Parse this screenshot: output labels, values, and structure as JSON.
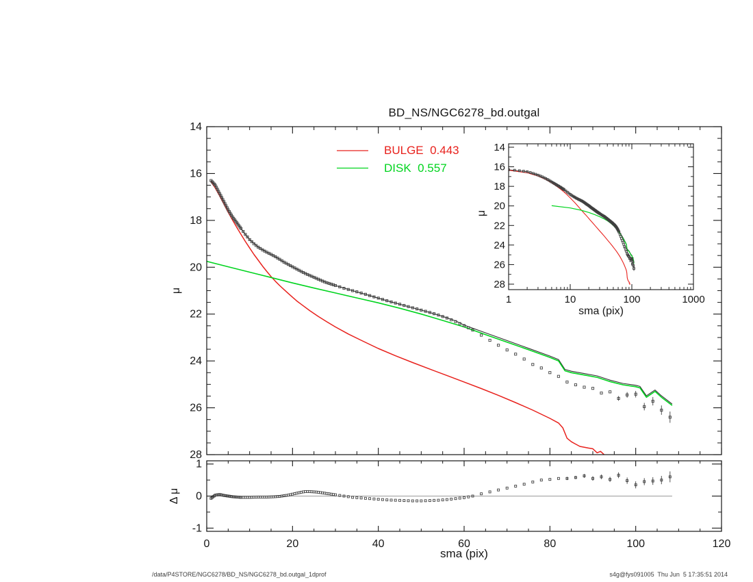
{
  "figure": {
    "title": "BD_NS/NGC6278_bd.outgal",
    "footer_left": "/data/P4STORE/NGC6278/BD_NS/NGC6278_bd.outgal_1dprof",
    "footer_right": "s4g@fys091005  Thu Jun  5 17:35:51 2014",
    "legend": {
      "entries": [
        {
          "label": "BULGE  0.443",
          "color": "#e8211c"
        },
        {
          "label": "DISK  0.557",
          "color": "#00d41e"
        }
      ]
    }
  },
  "chart_data": {
    "type": "line",
    "title": "BD_NS/NGC6278_bd.outgal",
    "main_panel": {
      "ylabel": "μ",
      "xlim": [
        0,
        120
      ],
      "ylim": [
        28,
        14
      ],
      "xticks": [
        0,
        20,
        40,
        60,
        80,
        100,
        120
      ],
      "xminor_step": 5,
      "yticks": [
        14,
        16,
        18,
        20,
        22,
        24,
        26,
        28
      ],
      "yminor_step": 0.5,
      "legend_position": "top-center"
    },
    "inset_panel": {
      "xlabel": "sma (pix)",
      "ylabel": "μ",
      "xscale": "log",
      "xlim": [
        1,
        1000
      ],
      "ylim": [
        28,
        14
      ],
      "xticks": [
        1,
        10,
        100,
        1000
      ],
      "yticks": [
        14,
        16,
        18,
        20,
        22,
        24,
        26,
        28
      ]
    },
    "residual_panel": {
      "xlabel": "sma (pix)",
      "ylabel": "Δ μ",
      "xlim": [
        0,
        120
      ],
      "ylim": [
        -1.1,
        1.1
      ],
      "xticks": [
        0,
        20,
        40,
        60,
        80,
        100,
        120
      ],
      "xminor_step": 5,
      "yticks": [
        -1,
        0,
        1
      ],
      "yminor": [
        -0.5,
        0.5
      ],
      "zero_line_xrange": [
        0,
        108.5
      ]
    },
    "marker_sampling": [
      [
        1,
        8,
        0.25
      ],
      [
        8.5,
        30,
        0.5
      ],
      [
        31,
        62,
        1
      ],
      [
        64,
        108,
        2
      ]
    ],
    "series": [
      {
        "name": "observed profile",
        "render": "open-square-markers",
        "color": "#3f3f3f",
        "points": [
          [
            1,
            16.3
          ],
          [
            2,
            16.5
          ],
          [
            3,
            16.85
          ],
          [
            4,
            17.2
          ],
          [
            5,
            17.55
          ],
          [
            6,
            17.85
          ],
          [
            7,
            18.1
          ],
          [
            8,
            18.35
          ],
          [
            9,
            18.6
          ],
          [
            10,
            18.82
          ],
          [
            11,
            19.0
          ],
          [
            12,
            19.14
          ],
          [
            13,
            19.26
          ],
          [
            14,
            19.36
          ],
          [
            15,
            19.45
          ],
          [
            16,
            19.55
          ],
          [
            17,
            19.66
          ],
          [
            18,
            19.78
          ],
          [
            19,
            19.88
          ],
          [
            20,
            19.98
          ],
          [
            21,
            20.08
          ],
          [
            22,
            20.18
          ],
          [
            23,
            20.27
          ],
          [
            24,
            20.35
          ],
          [
            25,
            20.43
          ],
          [
            26,
            20.51
          ],
          [
            27,
            20.59
          ],
          [
            28,
            20.66
          ],
          [
            29,
            20.72
          ],
          [
            30,
            20.78
          ],
          [
            32,
            20.9
          ],
          [
            34,
            21.0
          ],
          [
            36,
            21.1
          ],
          [
            38,
            21.21
          ],
          [
            40,
            21.32
          ],
          [
            42,
            21.43
          ],
          [
            44,
            21.53
          ],
          [
            46,
            21.63
          ],
          [
            48,
            21.73
          ],
          [
            50,
            21.83
          ],
          [
            52,
            21.93
          ],
          [
            54,
            22.04
          ],
          [
            56,
            22.17
          ],
          [
            58,
            22.32
          ],
          [
            60,
            22.49
          ],
          [
            62,
            22.68
          ],
          [
            64,
            22.9
          ],
          [
            66,
            23.12
          ],
          [
            68,
            23.33
          ],
          [
            70,
            23.53
          ],
          [
            72,
            23.71
          ],
          [
            74,
            23.92
          ],
          [
            76,
            24.15
          ],
          [
            78,
            24.3
          ],
          [
            80,
            24.5
          ],
          [
            82,
            24.66
          ],
          [
            84,
            24.9
          ],
          [
            86,
            25.02
          ],
          [
            88,
            25.12
          ],
          [
            90,
            25.17
          ],
          [
            92,
            25.37
          ],
          [
            94,
            25.32
          ],
          [
            96,
            25.6
          ],
          [
            98,
            25.45
          ],
          [
            100,
            25.42
          ],
          [
            102,
            25.95
          ],
          [
            104,
            25.72
          ],
          [
            106,
            26.1
          ],
          [
            108,
            26.4
          ]
        ],
        "errorbars": [
          [
            96,
            0.1
          ],
          [
            98,
            0.12
          ],
          [
            100,
            0.14
          ],
          [
            102,
            0.16
          ],
          [
            104,
            0.18
          ],
          [
            106,
            0.2
          ],
          [
            108,
            0.24
          ]
        ]
      },
      {
        "name": "BULGE",
        "fraction": 0.443,
        "render": "line",
        "color": "#e8211c",
        "points": [
          [
            1,
            16.35
          ],
          [
            2,
            16.62
          ],
          [
            3,
            16.95
          ],
          [
            4,
            17.3
          ],
          [
            5,
            17.65
          ],
          [
            6,
            17.98
          ],
          [
            7,
            18.3
          ],
          [
            8,
            18.6
          ],
          [
            9,
            18.9
          ],
          [
            10,
            19.18
          ],
          [
            11,
            19.45
          ],
          [
            12,
            19.7
          ],
          [
            13,
            19.95
          ],
          [
            14,
            20.18
          ],
          [
            15,
            20.4
          ],
          [
            16,
            20.6
          ],
          [
            17,
            20.78
          ],
          [
            18,
            20.95
          ],
          [
            19,
            21.12
          ],
          [
            20,
            21.28
          ],
          [
            21,
            21.44
          ],
          [
            22,
            21.58
          ],
          [
            24,
            21.85
          ],
          [
            26,
            22.1
          ],
          [
            28,
            22.33
          ],
          [
            30,
            22.55
          ],
          [
            33,
            22.85
          ],
          [
            36,
            23.12
          ],
          [
            40,
            23.47
          ],
          [
            44,
            23.78
          ],
          [
            48,
            24.07
          ],
          [
            52,
            24.35
          ],
          [
            56,
            24.62
          ],
          [
            60,
            24.9
          ],
          [
            64,
            25.18
          ],
          [
            68,
            25.47
          ],
          [
            72,
            25.78
          ],
          [
            76,
            26.1
          ],
          [
            80,
            26.45
          ],
          [
            82,
            26.65
          ],
          [
            83,
            26.85
          ],
          [
            84,
            27.3
          ],
          [
            85,
            27.45
          ],
          [
            86,
            27.55
          ],
          [
            87,
            27.65
          ],
          [
            89,
            27.72
          ],
          [
            90,
            27.75
          ],
          [
            91,
            27.92
          ],
          [
            91.8,
            27.86
          ],
          [
            93,
            28.06
          ]
        ]
      },
      {
        "name": "DISK",
        "fraction": 0.557,
        "render": "line",
        "color": "#00d41e",
        "points": [
          [
            0,
            19.75
          ],
          [
            5,
            19.98
          ],
          [
            10,
            20.21
          ],
          [
            15,
            20.44
          ],
          [
            20,
            20.67
          ],
          [
            25,
            20.89
          ],
          [
            30,
            21.1
          ],
          [
            35,
            21.31
          ],
          [
            40,
            21.52
          ],
          [
            45,
            21.75
          ],
          [
            50,
            22.0
          ],
          [
            55,
            22.27
          ],
          [
            60,
            22.55
          ],
          [
            65,
            22.88
          ],
          [
            70,
            23.2
          ],
          [
            75,
            23.52
          ],
          [
            80,
            23.85
          ],
          [
            82,
            24.0
          ],
          [
            83.5,
            24.42
          ],
          [
            85,
            24.5
          ],
          [
            88,
            24.6
          ],
          [
            91,
            24.7
          ],
          [
            94,
            24.88
          ],
          [
            97,
            25.02
          ],
          [
            100,
            25.1
          ],
          [
            101,
            25.15
          ],
          [
            102.5,
            25.55
          ],
          [
            104.5,
            25.3
          ],
          [
            106,
            25.55
          ],
          [
            108.5,
            25.9
          ]
        ]
      },
      {
        "name": "total model",
        "render": "line",
        "color": "#2f2f2f",
        "points": [
          [
            1,
            16.3
          ],
          [
            2,
            16.5
          ],
          [
            3,
            16.85
          ],
          [
            4,
            17.2
          ],
          [
            5,
            17.55
          ],
          [
            6,
            17.85
          ],
          [
            7,
            18.1
          ],
          [
            8,
            18.35
          ],
          [
            9,
            18.6
          ],
          [
            10,
            18.82
          ],
          [
            12,
            19.14
          ],
          [
            14,
            19.36
          ],
          [
            16,
            19.55
          ],
          [
            18,
            19.78
          ],
          [
            20,
            19.98
          ],
          [
            22,
            20.18
          ],
          [
            24,
            20.35
          ],
          [
            26,
            20.51
          ],
          [
            28,
            20.66
          ],
          [
            30,
            20.78
          ],
          [
            34,
            21.0
          ],
          [
            38,
            21.21
          ],
          [
            42,
            21.43
          ],
          [
            46,
            21.63
          ],
          [
            50,
            21.83
          ],
          [
            54,
            22.04
          ],
          [
            56,
            22.16
          ],
          [
            58,
            22.29
          ],
          [
            60,
            22.47
          ],
          [
            65,
            22.8
          ],
          [
            70,
            23.13
          ],
          [
            75,
            23.46
          ],
          [
            80,
            23.79
          ],
          [
            82,
            23.94
          ],
          [
            83.5,
            24.36
          ],
          [
            85,
            24.44
          ],
          [
            88,
            24.54
          ],
          [
            91,
            24.64
          ],
          [
            94,
            24.82
          ],
          [
            97,
            24.96
          ],
          [
            100,
            25.04
          ],
          [
            101,
            25.09
          ],
          [
            102.5,
            25.49
          ],
          [
            104.5,
            25.24
          ],
          [
            106,
            25.49
          ],
          [
            108.5,
            25.84
          ]
        ]
      }
    ],
    "residual_series": {
      "name": "Δμ (data - model)",
      "render": "open-square-markers",
      "color": "#3f3f3f",
      "points": [
        [
          1,
          -0.07
        ],
        [
          2,
          0.03
        ],
        [
          3,
          0.05
        ],
        [
          4,
          0.02
        ],
        [
          5,
          0.0
        ],
        [
          6,
          -0.02
        ],
        [
          7,
          -0.03
        ],
        [
          8,
          -0.04
        ],
        [
          10,
          -0.04
        ],
        [
          12,
          -0.03
        ],
        [
          14,
          -0.03
        ],
        [
          16,
          -0.02
        ],
        [
          17,
          -0.01
        ],
        [
          18,
          0.01
        ],
        [
          19,
          0.03
        ],
        [
          20,
          0.06
        ],
        [
          21,
          0.09
        ],
        [
          22,
          0.12
        ],
        [
          23,
          0.14
        ],
        [
          24,
          0.14
        ],
        [
          25,
          0.13
        ],
        [
          26,
          0.12
        ],
        [
          27,
          0.1
        ],
        [
          28,
          0.08
        ],
        [
          29,
          0.06
        ],
        [
          30,
          0.04
        ],
        [
          32,
          0.0
        ],
        [
          34,
          -0.04
        ],
        [
          36,
          -0.06
        ],
        [
          38,
          -0.08
        ],
        [
          40,
          -0.1
        ],
        [
          42,
          -0.12
        ],
        [
          44,
          -0.13
        ],
        [
          46,
          -0.14
        ],
        [
          48,
          -0.15
        ],
        [
          50,
          -0.15
        ],
        [
          52,
          -0.14
        ],
        [
          54,
          -0.13
        ],
        [
          56,
          -0.11
        ],
        [
          58,
          -0.08
        ],
        [
          60,
          -0.05
        ],
        [
          62,
          0.0
        ],
        [
          64,
          0.07
        ],
        [
          66,
          0.13
        ],
        [
          68,
          0.19
        ],
        [
          70,
          0.25
        ],
        [
          72,
          0.31
        ],
        [
          74,
          0.37
        ],
        [
          76,
          0.44
        ],
        [
          78,
          0.5
        ],
        [
          80,
          0.52
        ],
        [
          82,
          0.55
        ],
        [
          84,
          0.55
        ],
        [
          86,
          0.58
        ],
        [
          88,
          0.63
        ],
        [
          90,
          0.55
        ],
        [
          92,
          0.6
        ],
        [
          94,
          0.52
        ],
        [
          96,
          0.65
        ],
        [
          98,
          0.48
        ],
        [
          100,
          0.35
        ],
        [
          102,
          0.45
        ],
        [
          104,
          0.47
        ],
        [
          106,
          0.5
        ],
        [
          108,
          0.6
        ]
      ],
      "errorbars": [
        [
          84,
          0.05
        ],
        [
          86,
          0.05
        ],
        [
          88,
          0.06
        ],
        [
          90,
          0.07
        ],
        [
          92,
          0.07
        ],
        [
          94,
          0.08
        ],
        [
          96,
          0.09
        ],
        [
          98,
          0.1
        ],
        [
          100,
          0.11
        ],
        [
          102,
          0.11
        ],
        [
          104,
          0.12
        ],
        [
          106,
          0.13
        ],
        [
          108,
          0.17
        ]
      ]
    }
  }
}
